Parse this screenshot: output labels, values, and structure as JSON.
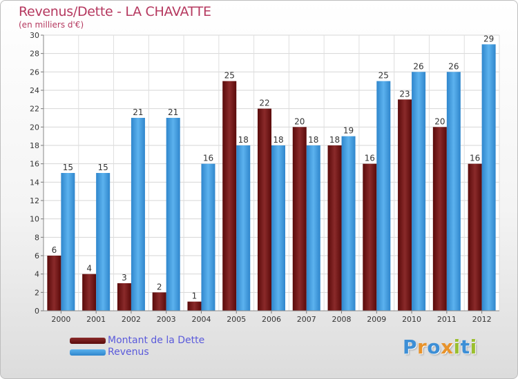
{
  "chart_data": {
    "type": "bar",
    "title": "Revenus/Dette - LA CHAVATTE",
    "subtitle": "(en milliers d'€)",
    "categories": [
      "2000",
      "2001",
      "2002",
      "2003",
      "2004",
      "2005",
      "2006",
      "2007",
      "2008",
      "2009",
      "2010",
      "2011",
      "2012"
    ],
    "series": [
      {
        "name": "Montant de la Dette",
        "color": "#7a1414",
        "values": [
          6,
          4,
          3,
          2,
          1,
          25,
          22,
          20,
          18,
          16,
          23,
          20,
          16
        ]
      },
      {
        "name": "Revenus",
        "color": "#3f9de0",
        "values": [
          15,
          15,
          21,
          21,
          16,
          18,
          18,
          18,
          19,
          25,
          26,
          26,
          29
        ]
      }
    ],
    "ylim": [
      0,
      30
    ],
    "yticks": [
      0,
      2,
      4,
      6,
      8,
      10,
      12,
      14,
      16,
      18,
      20,
      22,
      24,
      26,
      28,
      30
    ],
    "grid": true,
    "legend": "bottom-left"
  },
  "logo": {
    "letters": [
      "P",
      "r",
      "o",
      "x",
      "i",
      "t",
      "i"
    ],
    "colors": [
      "#3d8fd6",
      "#e8932b",
      "#3d8fd6",
      "#e8932b",
      "#9bbf2f",
      "#3d8fd6",
      "#9bbf2f"
    ]
  }
}
